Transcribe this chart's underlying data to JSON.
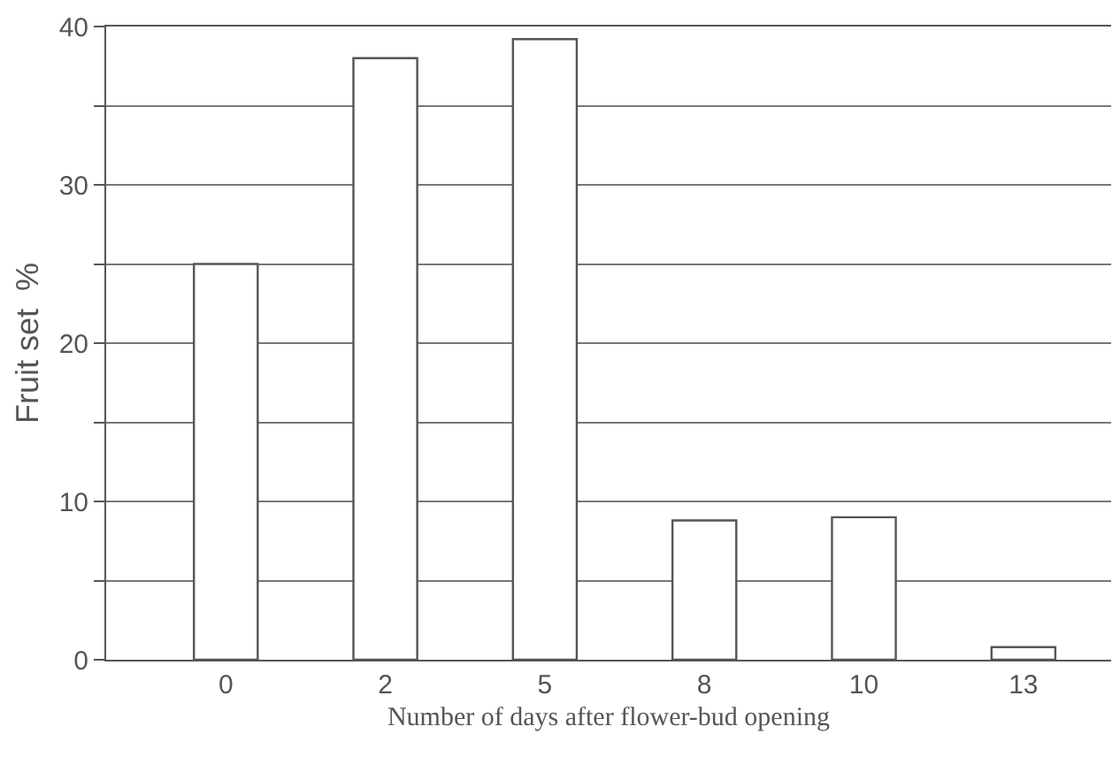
{
  "chart_data": {
    "type": "bar",
    "xlabel": "Number of days after flower-bud opening",
    "ylabel": "Fruit set  %",
    "categories": [
      "0",
      "2",
      "5",
      "8",
      "10",
      "13"
    ],
    "values": [
      25,
      38,
      39.2,
      8.8,
      9,
      0.8
    ],
    "color": "#ffffff",
    "ylim": [
      0,
      40
    ],
    "yticks": [
      0,
      {
        "value": 5,
        "label": null
      },
      10,
      {
        "value": 15,
        "label": null
      },
      20,
      {
        "value": 25,
        "label": null
      },
      30,
      {
        "value": 35,
        "label": null
      },
      40
    ],
    "grid": "y"
  }
}
